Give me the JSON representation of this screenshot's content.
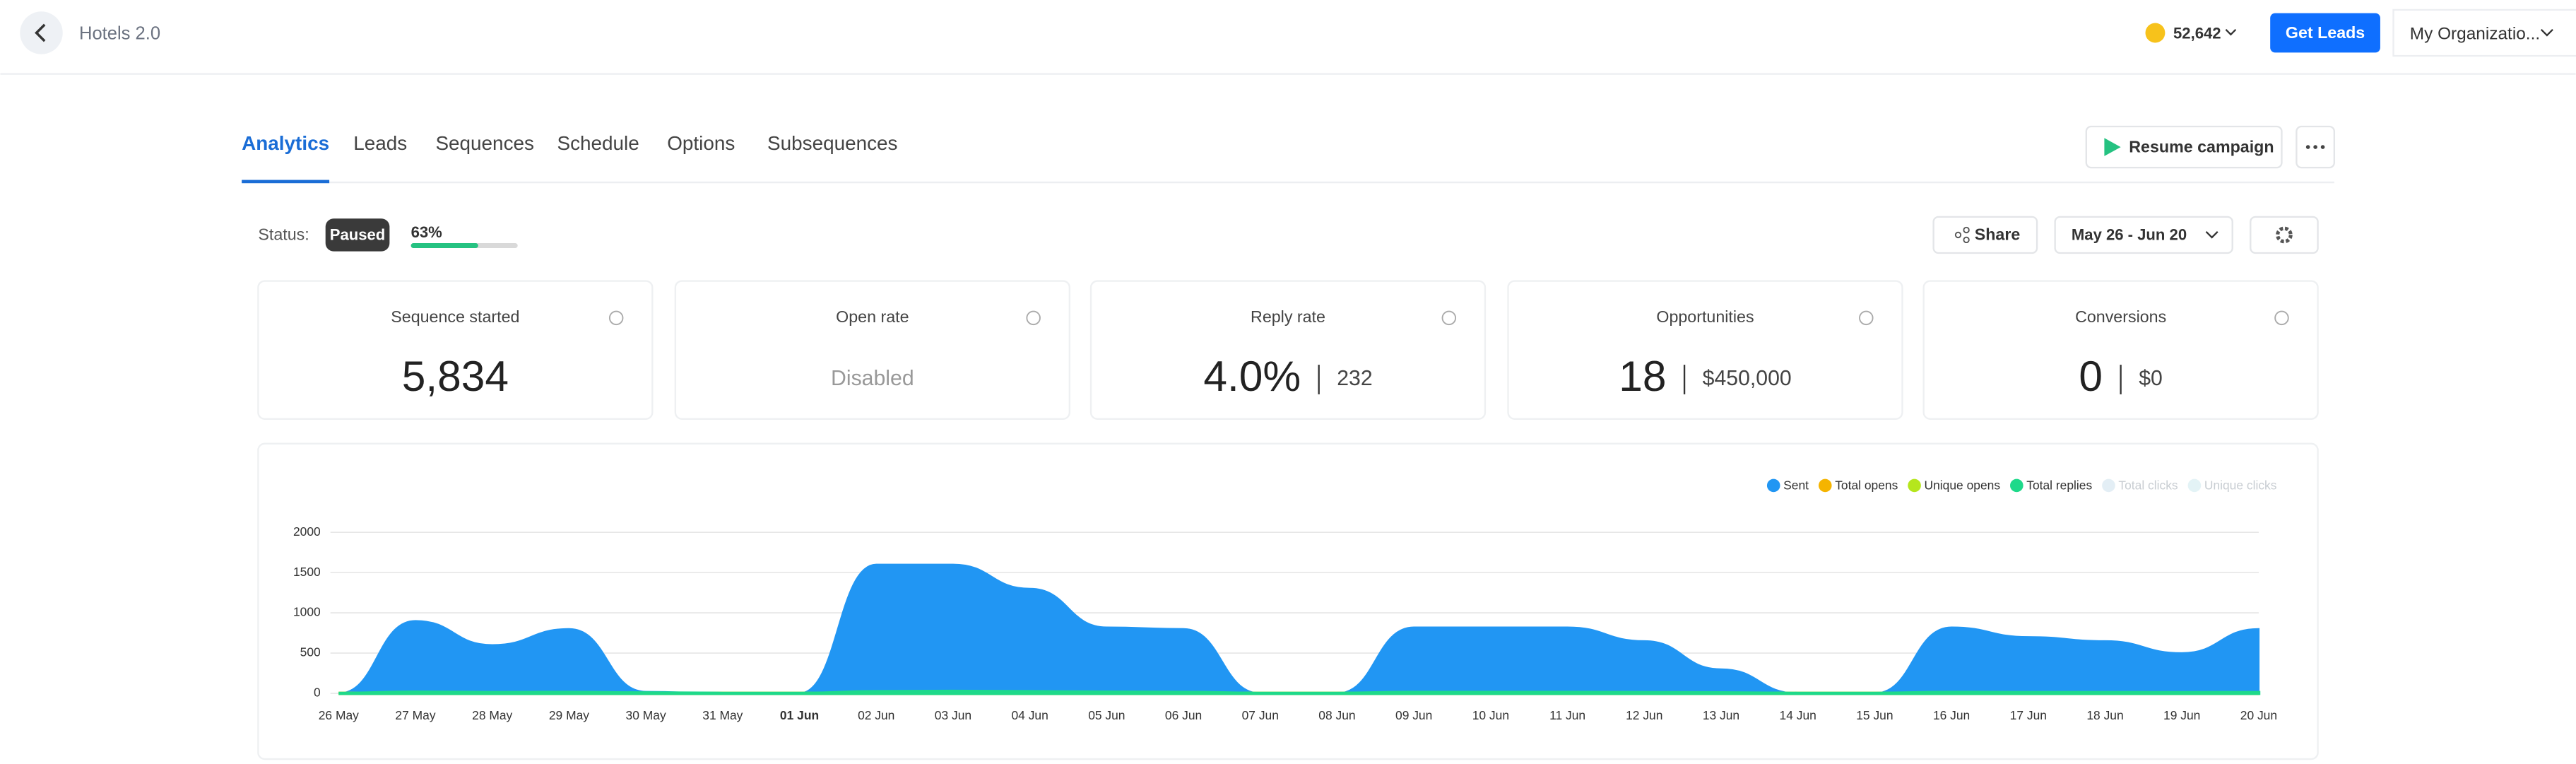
{
  "header": {
    "title": "Hotels 2.0",
    "credits": "52,642",
    "get_leads": "Get Leads",
    "organization": "My Organizatio..."
  },
  "tabs": [
    "Analytics",
    "Leads",
    "Sequences",
    "Schedule",
    "Options",
    "Subsequences"
  ],
  "resume": "Resume campaign",
  "status": {
    "label": "Status:",
    "state": "Paused",
    "progress": {
      "value": 63,
      "label": "63%"
    }
  },
  "share": "Share",
  "date_range": "May 26 - Jun 20",
  "cards": [
    {
      "title": "Sequence started",
      "value": "5,834"
    },
    {
      "title": "Open rate",
      "value": "Disabled"
    },
    {
      "title": "Reply rate",
      "value": "4.0%",
      "secondary": "232"
    },
    {
      "title": "Opportunities",
      "value": "18",
      "secondary": "$450,000"
    },
    {
      "title": "Conversions",
      "value": "0",
      "secondary": "$0"
    }
  ],
  "chart_data": {
    "type": "area",
    "categories": [
      "26 May",
      "27 May",
      "28 May",
      "29 May",
      "30 May",
      "31 May",
      "01 Jun",
      "02 Jun",
      "03 Jun",
      "04 Jun",
      "05 Jun",
      "06 Jun",
      "07 Jun",
      "08 Jun",
      "09 Jun",
      "10 Jun",
      "11 Jun",
      "12 Jun",
      "13 Jun",
      "14 Jun",
      "15 Jun",
      "16 Jun",
      "17 Jun",
      "18 Jun",
      "19 Jun",
      "20 Jun"
    ],
    "series": [
      {
        "name": "Sent",
        "color": "#2196f3",
        "values": [
          0,
          900,
          600,
          800,
          20,
          0,
          0,
          1600,
          1600,
          1300,
          820,
          800,
          0,
          0,
          820,
          820,
          820,
          650,
          300,
          0,
          0,
          820,
          700,
          650,
          500,
          800
        ]
      },
      {
        "name": "Total opens",
        "color": "#f5b400",
        "values": [
          0,
          0,
          0,
          0,
          0,
          0,
          0,
          0,
          0,
          0,
          0,
          0,
          0,
          0,
          0,
          0,
          0,
          0,
          0,
          0,
          0,
          0,
          0,
          0,
          0,
          0
        ]
      },
      {
        "name": "Unique opens",
        "color": "#b5e61d",
        "values": [
          0,
          0,
          0,
          0,
          0,
          0,
          0,
          0,
          0,
          0,
          0,
          0,
          0,
          0,
          0,
          0,
          0,
          0,
          0,
          0,
          0,
          0,
          0,
          0,
          0,
          0
        ]
      },
      {
        "name": "Total replies",
        "color": "#1ed98a",
        "values": [
          0,
          15,
          10,
          12,
          5,
          0,
          0,
          20,
          25,
          20,
          15,
          12,
          0,
          0,
          12,
          12,
          12,
          10,
          6,
          0,
          0,
          12,
          10,
          10,
          8,
          10
        ]
      },
      {
        "name": "Total clicks",
        "color": "#e3eef5",
        "visible": false,
        "values": [
          0,
          0,
          0,
          0,
          0,
          0,
          0,
          0,
          0,
          0,
          0,
          0,
          0,
          0,
          0,
          0,
          0,
          0,
          0,
          0,
          0,
          0,
          0,
          0,
          0,
          0
        ]
      },
      {
        "name": "Unique clicks",
        "color": "#e3f3f6",
        "visible": false,
        "values": [
          0,
          0,
          0,
          0,
          0,
          0,
          0,
          0,
          0,
          0,
          0,
          0,
          0,
          0,
          0,
          0,
          0,
          0,
          0,
          0,
          0,
          0,
          0,
          0,
          0,
          0
        ]
      }
    ],
    "ylim": [
      0,
      2000
    ],
    "yticks": [
      0,
      500,
      1000,
      1500,
      2000
    ],
    "grid": true,
    "legend": "top-right"
  }
}
